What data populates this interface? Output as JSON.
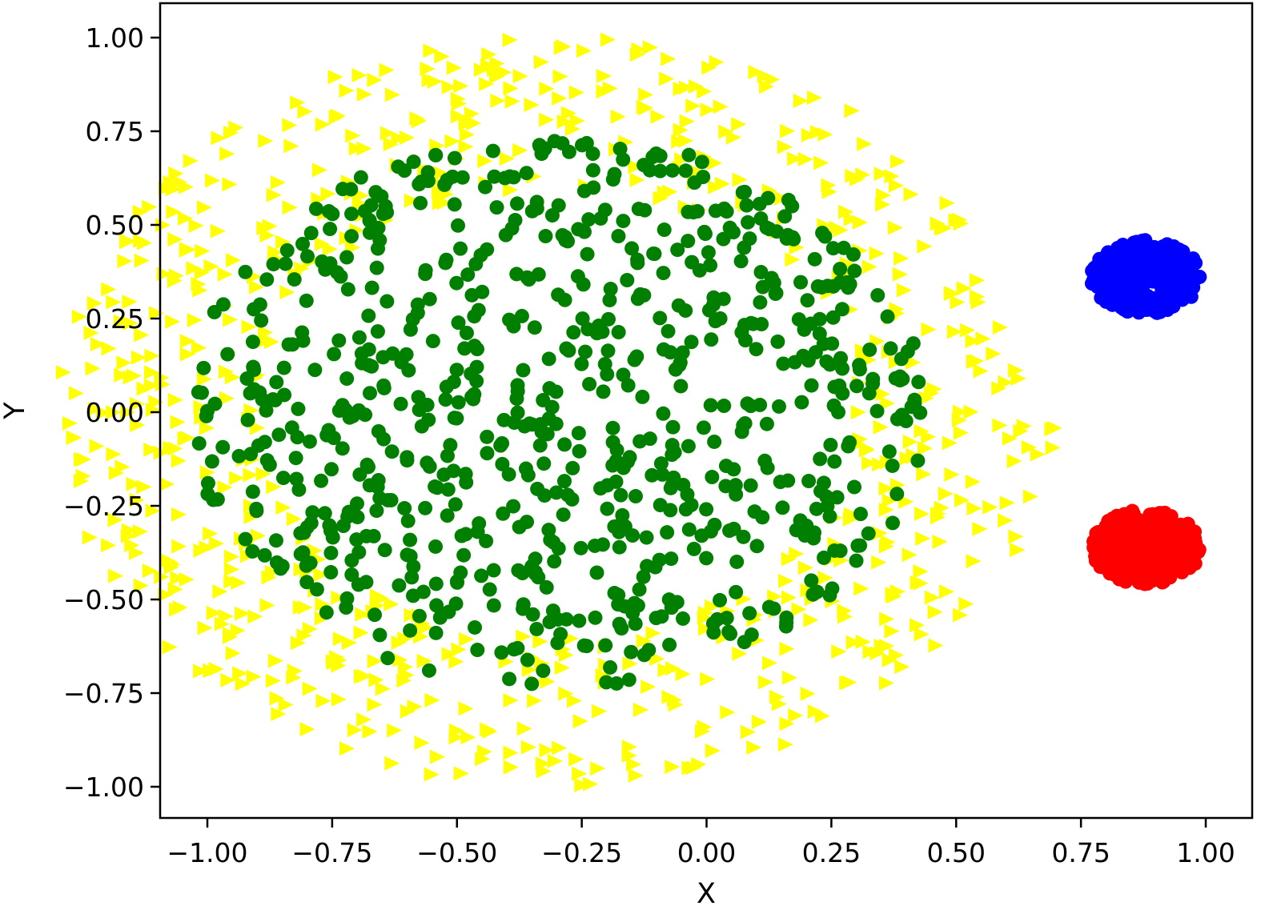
{
  "chart_data": {
    "type": "scatter",
    "title": "",
    "xlabel": "X",
    "ylabel": "Y",
    "xlim": [
      -1.1,
      1.1
    ],
    "ylim": [
      -1.08,
      1.08
    ],
    "grid": false,
    "legend": "none",
    "xticks": [
      -1.0,
      -0.75,
      -0.5,
      -0.25,
      0.0,
      0.25,
      0.5,
      0.75,
      1.0
    ],
    "xtick_labels": [
      "−1.00",
      "−0.75",
      "−0.50",
      "−0.25",
      "0.00",
      "0.25",
      "0.50",
      "0.75",
      "1.00"
    ],
    "yticks": [
      1.0,
      0.75,
      0.5,
      0.25,
      0.0,
      -0.25,
      -0.5,
      -0.75,
      -1.0
    ],
    "ytick_labels": [
      "1.00",
      "0.75",
      "0.50",
      "0.25",
      "0.00",
      "−0.25",
      "−0.50",
      "−0.75",
      "−1.00"
    ],
    "series": [
      {
        "marker": "triangle-right",
        "color": "#ffff00",
        "distribution": "ring",
        "center": [
          -0.3,
          0.0
        ],
        "inner_radius": 0.6,
        "outer_radius": 1.0,
        "count": 750
      },
      {
        "marker": "circle",
        "color": "#007f00",
        "distribution": "disk",
        "center": [
          -0.3,
          0.0
        ],
        "radius": 0.74,
        "count": 800
      },
      {
        "marker": "circle",
        "color": "#0000ff",
        "distribution": "ellipse",
        "center": [
          0.88,
          0.36
        ],
        "radii": [
          0.11,
          0.1
        ],
        "count": 260
      },
      {
        "marker": "circle",
        "color": "#ff0000",
        "distribution": "ellipse",
        "center": [
          0.88,
          -0.36
        ],
        "radii": [
          0.11,
          0.1
        ],
        "count": 260
      }
    ]
  }
}
